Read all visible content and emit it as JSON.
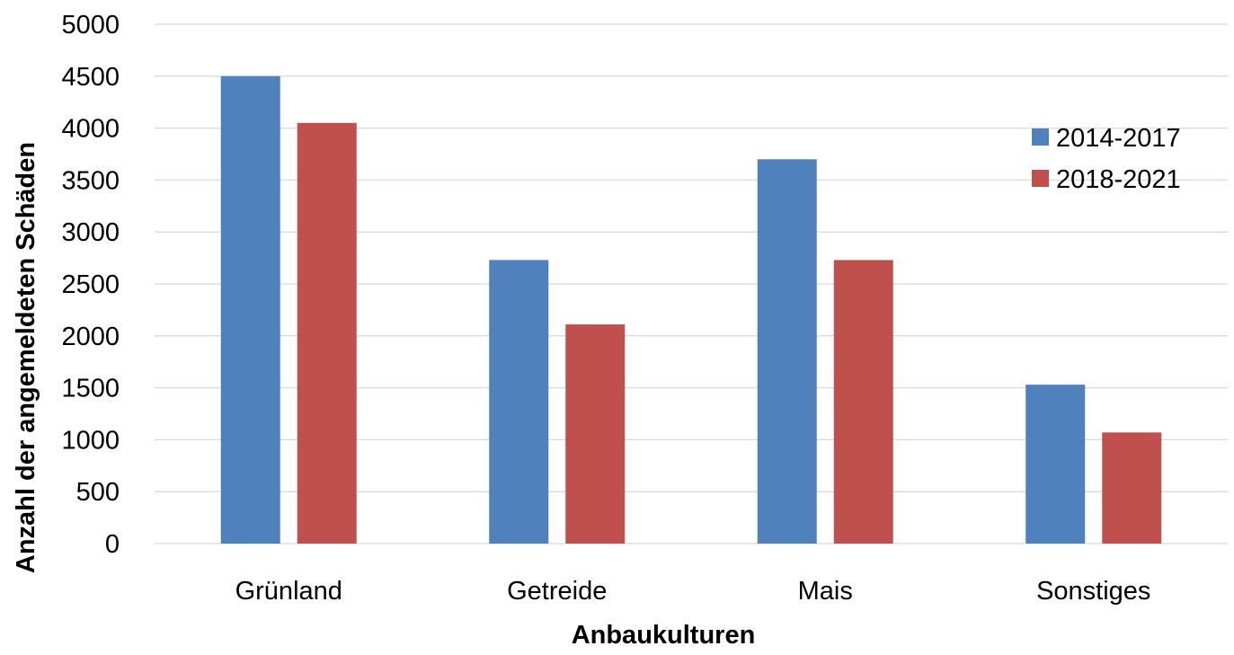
{
  "chart_data": {
    "type": "bar",
    "categories": [
      "Grünland",
      "Getreide",
      "Mais",
      "Sonstiges"
    ],
    "series": [
      {
        "name": "2014-2017",
        "values": [
          4500,
          2730,
          3700,
          1530
        ]
      },
      {
        "name": "2018-2021",
        "values": [
          4050,
          2110,
          2730,
          1070
        ]
      }
    ],
    "colors": [
      "#4f81bd",
      "#c0504d"
    ],
    "xlabel": "Anbaukulturen",
    "ylabel": "Anzahl der angemeldeten Schäden",
    "ylim": [
      0,
      5000
    ],
    "yticks": [
      "0",
      "500",
      "1000",
      "1500",
      "2000",
      "2500",
      "3000",
      "3500",
      "4000",
      "4500",
      "5000"
    ],
    "grid": true,
    "legend_position": "right"
  }
}
